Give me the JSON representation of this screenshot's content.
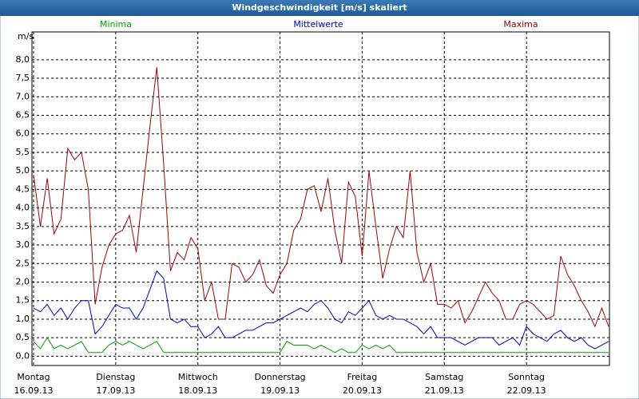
{
  "chart_data": {
    "type": "line",
    "title": "Windgeschwindigkeit [m/s] skaliert",
    "y_label": "m/s",
    "x": [
      0,
      2,
      4,
      6,
      8,
      10,
      12,
      14,
      16,
      18,
      20,
      22,
      24,
      26,
      28,
      30,
      32,
      34,
      36,
      38,
      40,
      42,
      44,
      46,
      48,
      50,
      52,
      54,
      56,
      58,
      60,
      62,
      64,
      66,
      68,
      70,
      72,
      74,
      76,
      78,
      80,
      82,
      84,
      86,
      88,
      90,
      92,
      94,
      96,
      98,
      100,
      102,
      104,
      106,
      108,
      110,
      112,
      114,
      116,
      118,
      120,
      122,
      124,
      126,
      128,
      130,
      132,
      134,
      136,
      138,
      140,
      142,
      144,
      146,
      148,
      150,
      152,
      154,
      156,
      158,
      160,
      162,
      164,
      166,
      168
    ],
    "series": [
      {
        "name": "Minima",
        "color": "#00a000",
        "values": [
          0.4,
          0.2,
          0.5,
          0.2,
          0.3,
          0.2,
          0.3,
          0.4,
          0.1,
          0.1,
          0.1,
          0.3,
          0.4,
          0.3,
          0.4,
          0.3,
          0.2,
          0.3,
          0.4,
          0.1,
          0.1,
          0.1,
          0.1,
          0.1,
          0.1,
          0.1,
          0.1,
          0.1,
          0.1,
          0.1,
          0.1,
          0.1,
          0.1,
          0.1,
          0.1,
          0.1,
          0.1,
          0.4,
          0.3,
          0.3,
          0.3,
          0.2,
          0.3,
          0.2,
          0.1,
          0.2,
          0.1,
          0.1,
          0.3,
          0.2,
          0.3,
          0.2,
          0.3,
          0.1,
          0.1,
          0.1,
          0.1,
          0.1,
          0.1,
          0.1,
          0.1,
          0.1,
          0.1,
          0.1,
          0.1,
          0.1,
          0.1,
          0.1,
          0.1,
          0.1,
          0.1,
          0.1,
          0.1,
          0.1,
          0.1,
          0.1,
          0.1,
          0.1,
          0.1,
          0.1,
          0.1,
          0.1,
          0.1,
          0.1,
          0.1
        ]
      },
      {
        "name": "Mittelwerte",
        "color": "#0000c0",
        "values": [
          1.3,
          1.2,
          1.4,
          1.1,
          1.3,
          1.0,
          1.3,
          1.5,
          1.5,
          0.6,
          0.8,
          1.1,
          1.4,
          1.3,
          1.3,
          1.0,
          1.3,
          1.8,
          2.3,
          2.1,
          1.0,
          0.9,
          1.0,
          0.8,
          0.8,
          0.5,
          0.6,
          0.8,
          0.5,
          0.5,
          0.6,
          0.7,
          0.7,
          0.8,
          0.9,
          0.9,
          1.0,
          1.1,
          1.2,
          1.3,
          1.2,
          1.4,
          1.5,
          1.3,
          1.0,
          0.9,
          1.2,
          1.1,
          1.3,
          1.5,
          1.1,
          1.0,
          1.1,
          1.0,
          1.0,
          0.9,
          0.8,
          0.6,
          0.8,
          0.5,
          0.5,
          0.5,
          0.4,
          0.3,
          0.4,
          0.5,
          0.5,
          0.5,
          0.3,
          0.4,
          0.5,
          0.3,
          0.8,
          0.6,
          0.5,
          0.4,
          0.6,
          0.7,
          0.5,
          0.4,
          0.5,
          0.3,
          0.2,
          0.3,
          0.4
        ]
      },
      {
        "name": "Maxima",
        "color": "#a00000",
        "values": [
          4.9,
          3.5,
          4.8,
          3.3,
          3.7,
          5.6,
          5.3,
          5.5,
          4.5,
          1.4,
          2.4,
          3.0,
          3.3,
          3.4,
          3.8,
          2.8,
          4.5,
          6.2,
          7.8,
          5.2,
          2.3,
          2.8,
          2.6,
          3.2,
          2.9,
          1.5,
          2.0,
          1.0,
          1.0,
          2.5,
          2.4,
          2.0,
          2.2,
          2.6,
          1.9,
          1.7,
          2.2,
          2.5,
          3.4,
          3.7,
          4.5,
          4.6,
          3.9,
          4.8,
          3.4,
          2.5,
          4.7,
          4.3,
          2.7,
          5.0,
          3.5,
          2.1,
          2.9,
          3.5,
          3.2,
          5.0,
          2.8,
          2.0,
          2.5,
          1.4,
          1.4,
          1.3,
          1.5,
          0.9,
          1.2,
          1.6,
          2.0,
          1.7,
          1.5,
          1.0,
          1.0,
          1.4,
          1.5,
          1.4,
          1.2,
          1.0,
          1.1,
          2.7,
          2.2,
          1.9,
          1.5,
          1.2,
          0.8,
          1.3,
          0.8
        ]
      }
    ],
    "xlim": [
      0,
      168
    ],
    "xticks": [
      {
        "value": 0,
        "label": "Montag",
        "date": "16.09.13"
      },
      {
        "value": 24,
        "label": "Dienstag",
        "date": "17.09.13"
      },
      {
        "value": 48,
        "label": "Mittwoch",
        "date": "18.09.13"
      },
      {
        "value": 72,
        "label": "Donnerstag",
        "date": "19.09.13"
      },
      {
        "value": 96,
        "label": "Freitag",
        "date": "20.09.13"
      },
      {
        "value": 120,
        "label": "Samstag",
        "date": "21.09.13"
      },
      {
        "value": 144,
        "label": "Sonntag",
        "date": "22.09.13"
      }
    ],
    "ylim": [
      -0.25,
      8.75
    ],
    "yticks": [
      {
        "value": 0,
        "label": "0,0"
      },
      {
        "value": 0.5,
        "label": "0,5"
      },
      {
        "value": 1,
        "label": "1,0"
      },
      {
        "value": 1.5,
        "label": "1,5"
      },
      {
        "value": 2,
        "label": "2,0"
      },
      {
        "value": 2.5,
        "label": "2,5"
      },
      {
        "value": 3,
        "label": "3,0"
      },
      {
        "value": 3.5,
        "label": "3,5"
      },
      {
        "value": 4,
        "label": "4,0"
      },
      {
        "value": 4.5,
        "label": "4,5"
      },
      {
        "value": 5,
        "label": "5,0"
      },
      {
        "value": 5.5,
        "label": "5,5"
      },
      {
        "value": 6,
        "label": "6,0"
      },
      {
        "value": 6.5,
        "label": "6,5"
      },
      {
        "value": 7,
        "label": "7,0"
      },
      {
        "value": 7.5,
        "label": "7,5"
      },
      {
        "value": 8,
        "label": "8,0"
      }
    ],
    "grid": true
  }
}
